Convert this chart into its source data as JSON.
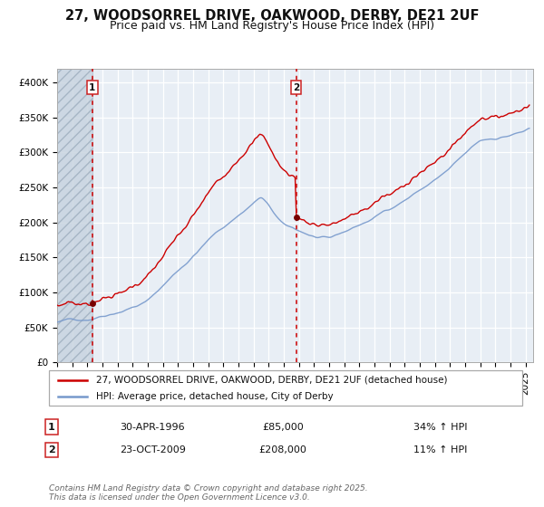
{
  "title_line1": "27, WOODSORREL DRIVE, OAKWOOD, DERBY, DE21 2UF",
  "title_line2": "Price paid vs. HM Land Registry's House Price Index (HPI)",
  "ylim": [
    0,
    420000
  ],
  "xlim_start": 1994.0,
  "xlim_end": 2025.5,
  "yticks": [
    0,
    50000,
    100000,
    150000,
    200000,
    250000,
    300000,
    350000,
    400000
  ],
  "ytick_labels": [
    "£0",
    "£50K",
    "£100K",
    "£150K",
    "£200K",
    "£250K",
    "£300K",
    "£350K",
    "£400K"
  ],
  "plot_bg_color": "#e8eef5",
  "hatch_region_end": 1996.33,
  "purchase1_x": 1996.33,
  "purchase1_y": 85000,
  "purchase1_label": "1",
  "purchase2_x": 2009.81,
  "purchase2_y": 208000,
  "purchase2_label": "2",
  "legend_line1": "27, WOODSORREL DRIVE, OAKWOOD, DERBY, DE21 2UF (detached house)",
  "legend_line2": "HPI: Average price, detached house, City of Derby",
  "line1_color": "#cc0000",
  "line2_color": "#7799cc",
  "marker_color": "#770000",
  "vline_color": "#cc0000",
  "note1_num": "1",
  "note1_date": "30-APR-1996",
  "note1_price": "£85,000",
  "note1_hpi": "34% ↑ HPI",
  "note2_num": "2",
  "note2_date": "23-OCT-2009",
  "note2_price": "£208,000",
  "note2_hpi": "11% ↑ HPI",
  "footer": "Contains HM Land Registry data © Crown copyright and database right 2025.\nThis data is licensed under the Open Government Licence v3.0.",
  "title_fontsize": 10.5,
  "subtitle_fontsize": 9,
  "tick_fontsize": 7.5,
  "legend_fontsize": 7.5,
  "note_fontsize": 8,
  "footer_fontsize": 6.5,
  "grid_color": "#ffffff"
}
